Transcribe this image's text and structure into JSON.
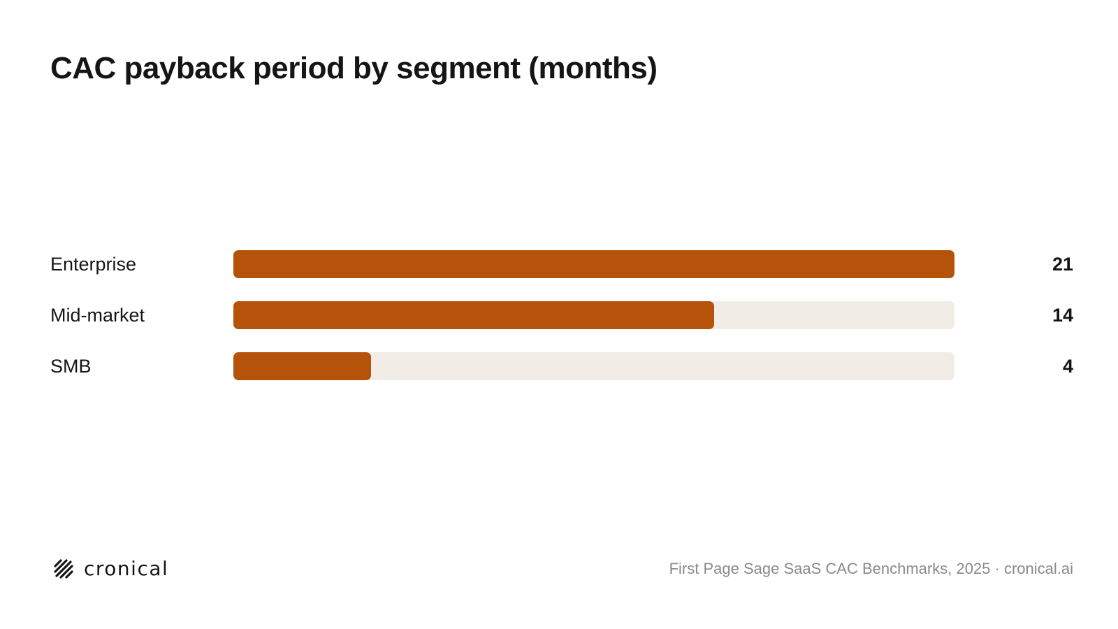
{
  "title": "CAC payback period by segment (months)",
  "chart_data": {
    "type": "bar",
    "orientation": "horizontal",
    "title": "CAC payback period by segment (months)",
    "categories": [
      "Enterprise",
      "Mid-market",
      "SMB"
    ],
    "values": [
      21,
      14,
      4
    ],
    "xlim": [
      0,
      21
    ],
    "grid": false,
    "bar_color": "#b5530b",
    "track_color": "#f1ece5",
    "value_labels": [
      "21",
      "14",
      "4"
    ]
  },
  "footer": {
    "brand": "cronical",
    "logo_icon": "cronical-logo-icon",
    "source": "First Page Sage SaaS CAC Benchmarks, 2025 · cronical.ai"
  }
}
